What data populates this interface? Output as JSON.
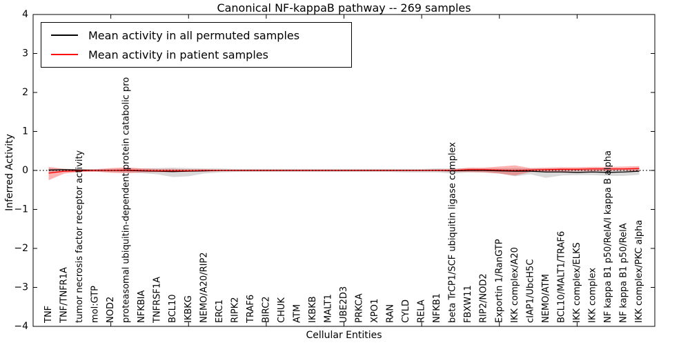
{
  "title": "Canonical NF-kappaB pathway -- 269 samples",
  "legend": {
    "entries": [
      {
        "label": "Mean activity in all permuted samples",
        "color": "#000000"
      },
      {
        "label": "Mean activity in patient samples",
        "color": "#ff0000"
      }
    ]
  },
  "chart_data": {
    "type": "line",
    "title": "Canonical NF-kappaB pathway -- 269 samples",
    "xlabel": "Cellular Entities",
    "ylabel": "Inferred Activity",
    "xlim": [
      0,
      40
    ],
    "ylim": [
      -4,
      4
    ],
    "yticks": [
      -4,
      -3,
      -2,
      -1,
      0,
      1,
      2,
      3,
      4
    ],
    "xticks_major": [
      5,
      10,
      15,
      20,
      25,
      30,
      35
    ],
    "grid": false,
    "legend_position": "upper left",
    "categories": [
      "TNF",
      "TNF/TNFR1A",
      "tumor necrosis factor receptor activity",
      "mol:GTP",
      "NOD2",
      "proteasomal ubiquitin-dependent protein catabolic pro",
      "NFKBIA",
      "TNFRSF1A",
      "BCL10",
      "IKBKG",
      "NEMO/A20/RIP2",
      "ERC1",
      "RIPK2",
      "TRAF6",
      "BIRC2",
      "CHUK",
      "ATM",
      "IKBKB",
      "MALT1",
      "UBE2D3",
      "PRKCA",
      "XPO1",
      "RAN",
      "CYLD",
      "RELA",
      "NFKB1",
      "beta TrCP1/SCF ubiquitin ligase complex",
      "FBXW11",
      "RIP2/NOD2",
      "Exportin 1/RanGTP",
      "IKK complex/A20",
      "cIAP1/UbcH5C",
      "NEMO/ATM",
      "BCL10/MALT1/TRAF6",
      "IKK complex/ELKS",
      "IKK complex",
      "NF kappa B1 p50/RelA/I kappa B alpha",
      "NF kappa B1 p50/RelA",
      "IKK complex/PKC alpha"
    ],
    "series": [
      {
        "name": "Mean activity in all permuted samples",
        "color": "#000000",
        "values": [
          0.01,
          0.02,
          0.01,
          0.0,
          0.0,
          0.0,
          -0.01,
          -0.02,
          -0.03,
          -0.02,
          -0.01,
          0.0,
          0.0,
          0.0,
          0.0,
          0.0,
          0.0,
          0.0,
          0.0,
          0.0,
          0.0,
          0.0,
          0.0,
          0.0,
          0.0,
          0.0,
          -0.01,
          0.0,
          0.0,
          -0.01,
          -0.02,
          -0.02,
          -0.04,
          -0.04,
          -0.05,
          -0.04,
          -0.05,
          -0.04,
          -0.02
        ]
      },
      {
        "name": "Mean activity in patient samples",
        "color": "#ff0000",
        "values": [
          -0.07,
          -0.02,
          -0.01,
          0.0,
          0.0,
          0.01,
          0.0,
          -0.01,
          -0.01,
          -0.01,
          0.0,
          0.0,
          0.0,
          0.0,
          0.0,
          0.0,
          0.0,
          0.0,
          0.0,
          0.0,
          0.0,
          0.0,
          0.0,
          0.0,
          0.0,
          0.0,
          0.0,
          0.02,
          0.02,
          0.01,
          0.0,
          0.01,
          0.02,
          0.03,
          0.03,
          0.04,
          0.04,
          0.04,
          0.05
        ]
      }
    ],
    "bands": [
      {
        "name": "permuted range",
        "color": "#000000",
        "opacity": 0.15,
        "upper": [
          0.05,
          0.04,
          0.03,
          0.03,
          0.04,
          0.05,
          0.05,
          0.06,
          0.07,
          0.06,
          0.05,
          0.05,
          0.04,
          0.04,
          0.04,
          0.04,
          0.04,
          0.04,
          0.04,
          0.04,
          0.04,
          0.04,
          0.04,
          0.04,
          0.04,
          0.05,
          0.05,
          0.05,
          0.05,
          0.05,
          0.06,
          0.05,
          0.05,
          0.05,
          0.04,
          0.04,
          0.04,
          0.04,
          0.04
        ],
        "lower": [
          -0.05,
          -0.04,
          -0.03,
          -0.03,
          -0.04,
          -0.05,
          -0.07,
          -0.1,
          -0.17,
          -0.15,
          -0.08,
          -0.05,
          -0.04,
          -0.04,
          -0.04,
          -0.04,
          -0.04,
          -0.04,
          -0.04,
          -0.04,
          -0.04,
          -0.04,
          -0.04,
          -0.05,
          -0.05,
          -0.05,
          -0.08,
          -0.05,
          -0.05,
          -0.08,
          -0.15,
          -0.1,
          -0.19,
          -0.13,
          -0.12,
          -0.12,
          -0.14,
          -0.14,
          -0.11
        ]
      },
      {
        "name": "patient range",
        "color": "#ff0000",
        "opacity": 0.3,
        "upper": [
          0.09,
          0.04,
          0.03,
          0.03,
          0.06,
          0.08,
          0.05,
          0.04,
          0.04,
          0.03,
          0.03,
          0.02,
          0.02,
          0.02,
          0.02,
          0.02,
          0.02,
          0.02,
          0.02,
          0.02,
          0.02,
          0.02,
          0.02,
          0.02,
          0.02,
          0.03,
          0.03,
          0.07,
          0.07,
          0.1,
          0.13,
          0.06,
          0.07,
          0.08,
          0.08,
          0.09,
          0.09,
          0.1,
          0.11
        ],
        "lower": [
          -0.25,
          -0.08,
          -0.04,
          -0.03,
          -0.06,
          -0.07,
          -0.05,
          -0.04,
          -0.04,
          -0.03,
          -0.03,
          -0.02,
          -0.02,
          -0.02,
          -0.02,
          -0.02,
          -0.02,
          -0.02,
          -0.02,
          -0.02,
          -0.02,
          -0.02,
          -0.02,
          -0.02,
          -0.02,
          -0.02,
          -0.03,
          -0.04,
          -0.05,
          -0.08,
          -0.13,
          -0.04,
          -0.03,
          -0.03,
          -0.02,
          -0.02,
          -0.01,
          0.0,
          -0.04
        ]
      }
    ],
    "zero_line": {
      "y": 0,
      "style": "dotted",
      "color": "#000000"
    }
  }
}
